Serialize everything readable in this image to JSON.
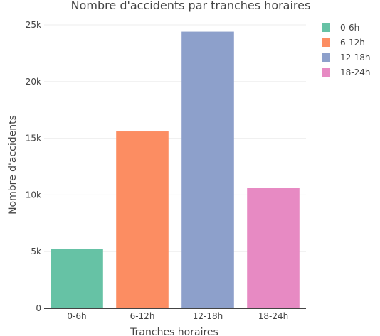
{
  "chart_data": {
    "type": "bar",
    "title": "Nombre d'accidents par tranches horaires",
    "xlabel": "Tranches horaires",
    "ylabel": "Nombre d'accidents",
    "categories": [
      "0-6h",
      "6-12h",
      "12-18h",
      "18-24h"
    ],
    "values": [
      5200,
      15600,
      24400,
      10650
    ],
    "colors": [
      "#66c2a5",
      "#fc8d62",
      "#8da0cb",
      "#e78ac3"
    ],
    "ylim": [
      0,
      25000
    ],
    "yticks": [
      0,
      5000,
      10000,
      15000,
      20000,
      25000
    ],
    "ytick_labels": [
      "0",
      "5k",
      "10k",
      "15k",
      "20k",
      "25k"
    ],
    "grid": true,
    "legend": {
      "position": "top-right",
      "entries": [
        "0-6h",
        "6-12h",
        "12-18h",
        "18-24h"
      ]
    }
  }
}
